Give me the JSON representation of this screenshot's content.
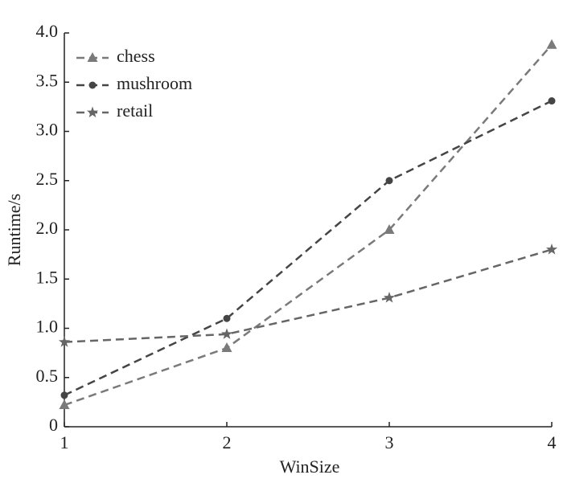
{
  "chart_data": {
    "type": "line",
    "x_label": "WinSize",
    "y_label": "Runtime/s",
    "x": [
      1,
      2,
      3,
      4
    ],
    "series": [
      {
        "name": "chess",
        "color": "#7a7a7a",
        "marker": "triangle",
        "values": [
          0.22,
          0.8,
          2.0,
          3.88
        ]
      },
      {
        "name": "mushroom",
        "color": "#454545",
        "marker": "circle",
        "values": [
          0.32,
          1.1,
          2.5,
          3.31
        ]
      },
      {
        "name": "retail",
        "color": "#666666",
        "marker": "star",
        "values": [
          0.86,
          0.94,
          1.31,
          1.8
        ]
      }
    ],
    "xlim": [
      1,
      4
    ],
    "xticks": [
      1,
      2,
      3,
      4
    ],
    "ylim": [
      0,
      4
    ],
    "yticks": [
      0,
      0.5,
      {
        "value": 1,
        "label": "1.0"
      },
      1.5,
      {
        "value": 2,
        "label": "2.0"
      },
      2.5,
      {
        "value": 3,
        "label": "3.0"
      },
      3.5,
      {
        "value": 4,
        "label": "4.0"
      }
    ],
    "legend": "top-left",
    "grid": false,
    "line_style": "dashed"
  }
}
